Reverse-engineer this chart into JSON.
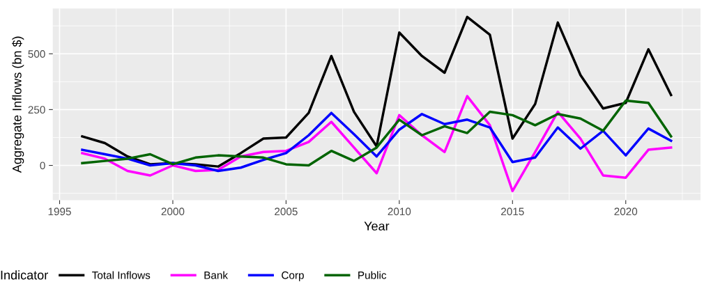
{
  "chart_data": {
    "type": "line",
    "xlabel": "Year",
    "ylabel": "Aggregate Inflows (bn $)",
    "legend_title": "Indicator",
    "x": [
      1996,
      1997,
      1998,
      1999,
      2000,
      2001,
      2002,
      2003,
      2004,
      2005,
      2006,
      2007,
      2008,
      2009,
      2010,
      2011,
      2012,
      2013,
      2014,
      2015,
      2016,
      2017,
      2018,
      2019,
      2020,
      2021,
      2022
    ],
    "series": [
      {
        "name": "Total Inflows",
        "color": "#000000",
        "values": [
          130,
          100,
          40,
          5,
          10,
          5,
          -5,
          55,
          120,
          125,
          235,
          490,
          240,
          85,
          595,
          490,
          415,
          665,
          585,
          120,
          275,
          640,
          405,
          255,
          280,
          520,
          315
        ]
      },
      {
        "name": "Bank",
        "color": "#ff00ff",
        "values": [
          55,
          30,
          -25,
          -45,
          0,
          -25,
          -20,
          40,
          60,
          65,
          105,
          195,
          80,
          -35,
          225,
          135,
          60,
          310,
          180,
          -115,
          60,
          240,
          120,
          -45,
          -55,
          70,
          80
        ]
      },
      {
        "name": "Corp",
        "color": "#0000ff",
        "values": [
          70,
          50,
          30,
          0,
          10,
          0,
          -25,
          -10,
          25,
          55,
          135,
          235,
          140,
          40,
          160,
          230,
          185,
          205,
          170,
          15,
          35,
          170,
          75,
          155,
          45,
          165,
          110
        ]
      },
      {
        "name": "Public",
        "color": "#006400",
        "values": [
          10,
          20,
          30,
          50,
          5,
          35,
          45,
          40,
          35,
          5,
          0,
          65,
          20,
          80,
          205,
          135,
          175,
          145,
          240,
          225,
          180,
          230,
          210,
          155,
          290,
          280,
          130
        ]
      }
    ],
    "xlim": [
      1994.7,
      2023.3
    ],
    "xticks": [
      1995,
      2000,
      2005,
      2010,
      2015,
      2020
    ],
    "ylim": [
      -156,
      703
    ],
    "yticks": [
      0,
      250,
      500
    ],
    "grid": true,
    "legend": "bottom",
    "line_style": "solid",
    "marker": "none"
  }
}
